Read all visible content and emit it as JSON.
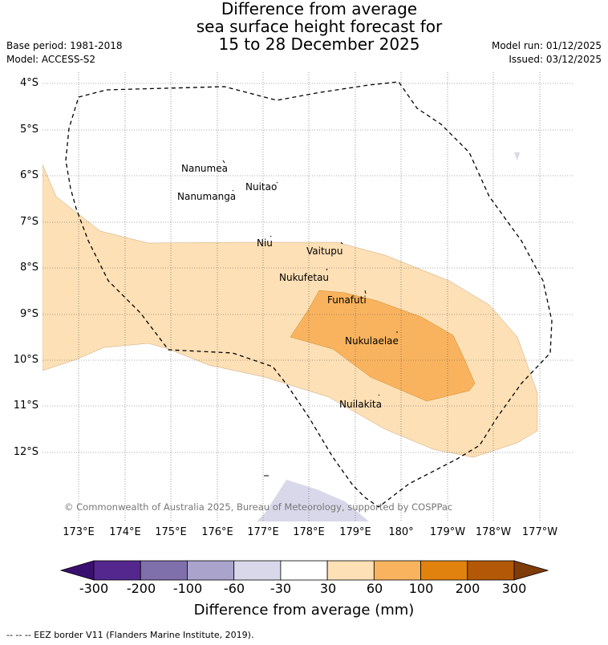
{
  "title": {
    "line1": "Difference from average",
    "line2": "sea surface height forecast for",
    "line3": "15 to 28 December 2025"
  },
  "meta": {
    "base_period": "Base period: 1981-2018",
    "model": "Model: ACCESS-S2",
    "model_run": "Model run: 01/12/2025",
    "issued": "Issued: 03/12/2025"
  },
  "map": {
    "latitudes": [
      "4°S",
      "5°S",
      "6°S",
      "7°S",
      "8°S",
      "9°S",
      "10°S",
      "11°S",
      "12°S"
    ],
    "longitudes": [
      "173°E",
      "174°E",
      "175°E",
      "176°E",
      "177°E",
      "178°E",
      "179°E",
      "180°",
      "179°W",
      "178°W",
      "177°W"
    ],
    "places": [
      "Nanumea",
      "Nuitao",
      "Nanumanga",
      "Niu",
      "Vaitupu",
      "Nukufetau",
      "Funafuti",
      "Nukulaelae",
      "Nuilakita"
    ],
    "copyright": "© Commonwealth of Australia 2025, Bureau of Meteorology, supported by COSPPac"
  },
  "colorbar": {
    "title": "Difference from average (mm)",
    "ticks": [
      "-300",
      "-200",
      "-100",
      "-60",
      "-30",
      "30",
      "60",
      "100",
      "200",
      "300"
    ],
    "colors": [
      "#3b0f6f",
      "#54278f",
      "#7f6fab",
      "#aaa3cc",
      "#d8d8ea",
      "#ffffff",
      "#fde0b5",
      "#f9b35e",
      "#e1820f",
      "#b35806",
      "#7f3b08"
    ]
  },
  "footer": "--  --  -- EEZ border V11 (Flanders Marine Institute, 2019)."
}
